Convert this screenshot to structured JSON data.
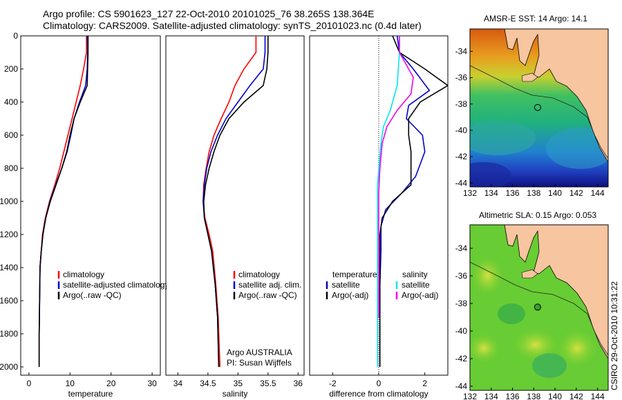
{
  "header": {
    "title_line1": "Argo profile: CS 5901623_127 22-Oct-2010 20101025_76 38.265S 138.364E",
    "title_line2": "Climatology: CARS2009. Satellite-adjusted climatology: synTS_20101023.nc (0.4d later)"
  },
  "colors": {
    "climatology": "#ff0000",
    "satellite": "#0000cc",
    "argo": "#000000",
    "sat_diff": "#00e5ee",
    "argo_adj": "#ee00ee",
    "land": "#f7c59f"
  },
  "chart_data": [
    {
      "id": "temperature",
      "type": "line",
      "xlabel": "temperature",
      "ylabel": "",
      "xlim": [
        -2,
        32
      ],
      "ylim": [
        2050,
        0
      ],
      "xticks": [
        "0",
        "10",
        "20",
        "30"
      ],
      "xtick_values": [
        0,
        10,
        20,
        30
      ],
      "yticks": [
        "0",
        "200",
        "400",
        "600",
        "800",
        "1000",
        "1200",
        "1400",
        "1600",
        "1800",
        "2000"
      ],
      "ytick_values": [
        0,
        200,
        400,
        600,
        800,
        1000,
        1200,
        1400,
        1600,
        1800,
        2000
      ],
      "series": [
        {
          "name": "climatology",
          "color": "#ff0000",
          "x": [
            14,
            14,
            13.3,
            12.5,
            11.5,
            10.5,
            9.5,
            8.5,
            7.5,
            6.3,
            5,
            4,
            3.3,
            3,
            2.7,
            2.6,
            2.5,
            2.5
          ],
          "y": [
            0,
            100,
            200,
            300,
            400,
            500,
            600,
            700,
            800,
            900,
            1000,
            1100,
            1200,
            1300,
            1400,
            1600,
            1800,
            2000
          ]
        },
        {
          "name": "satellite-adjusted climatology",
          "color": "#0000cc",
          "x": [
            14.2,
            14.3,
            14.2,
            13.8,
            12.3,
            11,
            10.2,
            9.3,
            8,
            6.5,
            5.1,
            4.1,
            3.4,
            3,
            2.7,
            2.6,
            2.5,
            2.5
          ],
          "y": [
            0,
            100,
            200,
            300,
            400,
            500,
            600,
            700,
            800,
            900,
            1000,
            1100,
            1200,
            1300,
            1400,
            1600,
            1800,
            2000
          ]
        },
        {
          "name": "Argo(..raw -QC)",
          "color": "#000000",
          "x": [
            14.4,
            14.4,
            14.3,
            14.2,
            12.5,
            11,
            10,
            9.2,
            8,
            6.6,
            5.2,
            4.1,
            3.4,
            3,
            2.7,
            2.6,
            2.5,
            2.5
          ],
          "y": [
            0,
            100,
            200,
            300,
            400,
            500,
            600,
            700,
            800,
            900,
            1000,
            1100,
            1200,
            1300,
            1400,
            1600,
            1800,
            2000
          ]
        }
      ],
      "legend": [
        "climatology",
        "satellite-adjusted climatology",
        "Argo(..raw -QC)"
      ]
    },
    {
      "id": "salinity",
      "type": "line",
      "xlabel": "salinity",
      "ylabel": "",
      "xlim": [
        33.8,
        36.1
      ],
      "ylim": [
        2050,
        0
      ],
      "xticks": [
        "34",
        "34.5",
        "35",
        "35.5",
        "36"
      ],
      "xtick_values": [
        34,
        34.5,
        35,
        35.5,
        36
      ],
      "series": [
        {
          "name": "climatology",
          "color": "#ff0000",
          "x": [
            35.3,
            35.3,
            35.1,
            34.95,
            34.85,
            34.72,
            34.6,
            34.52,
            34.47,
            34.43,
            34.42,
            34.45,
            34.52,
            34.58,
            34.63,
            34.67,
            34.7
          ],
          "y": [
            0,
            100,
            200,
            300,
            400,
            500,
            600,
            700,
            800,
            900,
            1000,
            1100,
            1200,
            1300,
            1500,
            1700,
            2000
          ]
        },
        {
          "name": "satellite adj. clim.",
          "color": "#0000cc",
          "x": [
            35.45,
            35.45,
            35.42,
            35.2,
            35.0,
            34.8,
            34.66,
            34.55,
            34.48,
            34.44,
            34.42,
            34.44,
            34.5,
            34.56,
            34.62,
            34.66,
            34.68
          ],
          "y": [
            0,
            100,
            200,
            300,
            400,
            500,
            600,
            700,
            800,
            900,
            1000,
            1100,
            1200,
            1300,
            1500,
            1700,
            2000
          ]
        },
        {
          "name": "Argo(..raw -QC)",
          "color": "#000000",
          "x": [
            35.5,
            35.5,
            35.48,
            35.42,
            35.1,
            34.85,
            34.7,
            34.6,
            34.52,
            34.46,
            34.43,
            34.44,
            34.5,
            34.56,
            34.62,
            34.66,
            34.68
          ],
          "y": [
            0,
            100,
            200,
            300,
            400,
            500,
            600,
            700,
            800,
            900,
            1000,
            1100,
            1200,
            1300,
            1500,
            1700,
            2000
          ]
        }
      ],
      "legend": [
        "climatology",
        "satellite adj. clim.",
        "Argo(..raw -QC)"
      ],
      "annotation": [
        "Argo AUSTRALIA",
        "PI: Susan Wijffels"
      ]
    },
    {
      "id": "difference",
      "type": "line",
      "xlabel": "difference from climatology",
      "ylabel": "",
      "xlim": [
        -3,
        3
      ],
      "ylim": [
        2050,
        0
      ],
      "xticks": [
        "-2",
        "0",
        "2"
      ],
      "xtick_values": [
        -2,
        0,
        2
      ],
      "zero_line": true,
      "series": [
        {
          "name": "temperature satellite",
          "color": "#0000cc",
          "x": [
            0.8,
            0.9,
            1.5,
            2.2,
            1.3,
            1.2,
            1.9,
            2.0,
            1.6,
            1.0,
            0.3,
            0.1,
            0.1,
            0.05,
            0.05,
            0.05
          ],
          "y": [
            0,
            100,
            200,
            330,
            420,
            500,
            600,
            700,
            850,
            950,
            1050,
            1150,
            1300,
            1500,
            1800,
            2000
          ]
        },
        {
          "name": "temperature Argo(-adj)",
          "color": "#000000",
          "x": [
            0.6,
            0.9,
            2.0,
            3.0,
            1.8,
            1.3,
            1.3,
            1.4,
            1.4,
            0.6,
            0.15,
            0.05,
            0.05,
            0.05,
            0.05,
            0.05
          ],
          "y": [
            0,
            100,
            200,
            300,
            400,
            500,
            600,
            700,
            900,
            1000,
            1100,
            1200,
            1300,
            1500,
            1800,
            2000
          ]
        },
        {
          "name": "salinity satellite",
          "color": "#00e5ee",
          "x": [
            0.9,
            0.9,
            0.8,
            0.5,
            0.2,
            0.1,
            0.0,
            -0.05,
            -0.05,
            -0.05,
            -0.05,
            -0.05,
            -0.05,
            -0.05
          ],
          "y": [
            0,
            100,
            300,
            450,
            550,
            650,
            800,
            900,
            1000,
            1200,
            1400,
            1600,
            1800,
            2000
          ]
        },
        {
          "name": "salinity Argo(-adj)",
          "color": "#ee00ee",
          "x": [
            0.9,
            0.9,
            1.5,
            1.4,
            0.8,
            0.35,
            0.15,
            0.05,
            0.0,
            0.0,
            0.0,
            0.0,
            0.0,
            0.0
          ],
          "y": [
            0,
            100,
            250,
            350,
            450,
            550,
            650,
            800,
            950,
            1100,
            1300,
            1500,
            1700,
            1700
          ]
        }
      ],
      "legend_headers": [
        "temperature",
        "salinity"
      ],
      "legend": [
        "satellite",
        "Argo(-adj)",
        "satellite",
        "Argo(-adj)"
      ]
    },
    {
      "id": "sst_map",
      "type": "heatmap",
      "title": "AMSR-E SST: 14 Argo: 14.1",
      "xlim": [
        132,
        145
      ],
      "ylim": [
        -44.3,
        -32.3
      ],
      "xticks": [
        "132",
        "134",
        "136",
        "138",
        "140",
        "142",
        "144"
      ],
      "xtick_values": [
        132,
        134,
        136,
        138,
        140,
        142,
        144
      ],
      "yticks": [
        "-34",
        "-36",
        "-38",
        "-40",
        "-42",
        "-44"
      ],
      "ytick_values": [
        -34,
        -36,
        -38,
        -40,
        -42,
        -44
      ],
      "marker": {
        "lon": 138.364,
        "lat": -38.265
      }
    },
    {
      "id": "sla_map",
      "type": "heatmap",
      "title": "Altimetric SLA: 0.15 Argo: 0.053",
      "xlim": [
        132,
        145
      ],
      "ylim": [
        -44.3,
        -32.3
      ],
      "xticks": [
        "132",
        "134",
        "136",
        "138",
        "140",
        "142",
        "144"
      ],
      "xtick_values": [
        132,
        134,
        136,
        138,
        140,
        142,
        144
      ],
      "yticks": [
        "-34",
        "-36",
        "-38",
        "-40",
        "-42",
        "-44"
      ],
      "ytick_values": [
        -34,
        -36,
        -38,
        -40,
        -42,
        -44
      ],
      "marker": {
        "lon": 138.364,
        "lat": -38.265
      }
    }
  ],
  "footer": {
    "stamp": "CSIRO 29-Oct-2010 10:31:22"
  }
}
